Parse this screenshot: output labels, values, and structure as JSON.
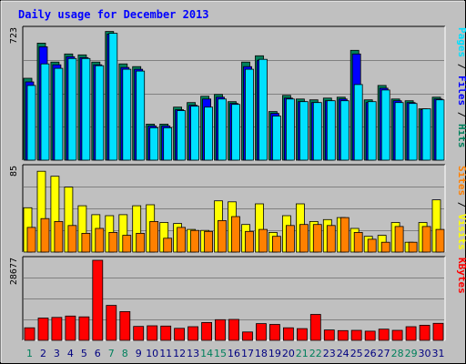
{
  "chart_data": [
    {
      "type": "bar",
      "title": "Daily usage for December 2013",
      "name": "requests",
      "ymax_label": "723",
      "ylim": [
        0,
        723
      ],
      "axis_labels": [
        "Pages",
        "Files",
        "Hits"
      ],
      "label_separator": " / ",
      "grid": true,
      "series": [
        {
          "name": "Hits",
          "color": "#00805c",
          "values": [
            455,
            650,
            545,
            590,
            585,
            545,
            715,
            535,
            520,
            200,
            200,
            295,
            320,
            355,
            365,
            325,
            545,
            580,
            270,
            360,
            340,
            335,
            345,
            350,
            610,
            335,
            415,
            340,
            330,
            285,
            350
          ]
        },
        {
          "name": "Files",
          "color": "#0000ff",
          "values": [
            435,
            630,
            530,
            575,
            570,
            530,
            700,
            515,
            505,
            190,
            190,
            280,
            305,
            340,
            350,
            315,
            520,
            555,
            260,
            345,
            325,
            320,
            330,
            340,
            590,
            320,
            400,
            330,
            320,
            280,
            340
          ]
        },
        {
          "name": "Pages",
          "color": "#00e0ff",
          "values": [
            415,
            535,
            510,
            565,
            565,
            525,
            705,
            505,
            495,
            180,
            180,
            275,
            300,
            295,
            340,
            310,
            505,
            560,
            245,
            340,
            325,
            320,
            330,
            330,
            420,
            325,
            390,
            320,
            315,
            285,
            335
          ]
        }
      ]
    },
    {
      "type": "bar",
      "ymax_label": "85",
      "ylim": [
        0,
        85
      ],
      "axis_labels": [
        "Sites",
        "Visits"
      ],
      "label_separator": " / ",
      "grid": true,
      "series": [
        {
          "name": "Visits",
          "color": "#ffff00",
          "values": [
            45,
            82,
            77,
            66,
            47,
            38,
            37,
            38,
            47,
            48,
            30,
            29,
            23,
            22,
            52,
            51,
            28,
            49,
            20,
            37,
            49,
            31,
            33,
            35,
            24,
            16,
            17,
            30,
            10,
            30,
            53
          ]
        },
        {
          "name": "Sites",
          "color": "#ff8000",
          "values": [
            25,
            34,
            31,
            27,
            19,
            24,
            20,
            17,
            19,
            31,
            14,
            25,
            22,
            21,
            32,
            36,
            21,
            23,
            16,
            27,
            28,
            28,
            27,
            35,
            20,
            13,
            10,
            26,
            10,
            26,
            23
          ]
        }
      ]
    },
    {
      "type": "bar",
      "ymax_label": "28677",
      "ylim": [
        0,
        28677
      ],
      "axis_labels": [
        "KBytes"
      ],
      "label_separator": "",
      "grid": true,
      "series": [
        {
          "name": "KBytes",
          "color": "#ff0000",
          "values": [
            4500,
            8000,
            8200,
            8700,
            8400,
            28677,
            12500,
            10300,
            5000,
            5200,
            5100,
            4300,
            4900,
            6400,
            7400,
            7500,
            3000,
            6000,
            5700,
            4500,
            4200,
            9300,
            3700,
            3500,
            3600,
            3300,
            4000,
            3600,
            4900,
            5400,
            6100
          ]
        }
      ]
    }
  ],
  "days": [
    "1",
    "2",
    "3",
    "4",
    "5",
    "6",
    "7",
    "8",
    "9",
    "10",
    "11",
    "12",
    "13",
    "14",
    "15",
    "16",
    "17",
    "18",
    "19",
    "20",
    "21",
    "22",
    "23",
    "24",
    "25",
    "26",
    "27",
    "28",
    "29",
    "30",
    "31"
  ],
  "weekend_days": [
    "1",
    "7",
    "8",
    "14",
    "15",
    "21",
    "22",
    "28",
    "29"
  ],
  "colors": {
    "background": "#c0c0c0",
    "title": "#0000ff",
    "weekday": "#000080",
    "weekend": "#00805c",
    "grid": "#808080",
    "bevel_light": "#ffffff",
    "bevel_dark": "#000000"
  }
}
